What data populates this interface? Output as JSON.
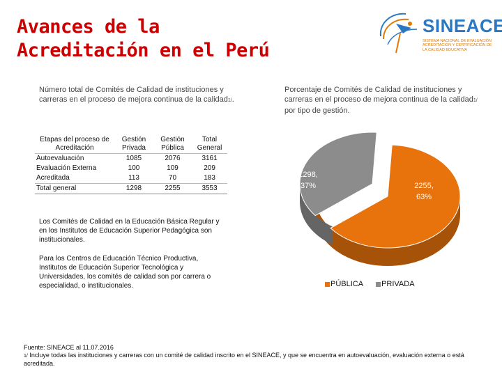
{
  "title": {
    "line1": "Avances de la",
    "line2": "Acreditación en el Perú"
  },
  "logo": {
    "name": "SINEACE",
    "tagline": "SISTEMA NACIONAL DE EVALUACIÓN ACREDITACIÓN Y CERTIFICACIÓN DE LA CALIDAD EDUCATIVA"
  },
  "left_caption": {
    "text": "Número total de Comités de Calidad de instituciones y carreras  en el proceso de mejora continua de la calidad",
    "note": "1/",
    "tail": "."
  },
  "table": {
    "headers": [
      "Etapas del proceso de Acreditación",
      "Gestión Privada",
      "Gestión Pública",
      "Total General"
    ],
    "rows": [
      [
        "Autoevaluación",
        "1085",
        "2076",
        "3161"
      ],
      [
        "Evaluación Externa",
        "100",
        "109",
        "209"
      ],
      [
        "Acreditada",
        "113",
        "70",
        "183"
      ]
    ],
    "total": [
      "Total general",
      "1298",
      "2255",
      "3553"
    ]
  },
  "notes": {
    "p1": "Los Comités de Calidad en la Educación Básica Regular y en los Institutos de Educación Superior Pedagógica son institucionales.",
    "p2": "Para los Centros de Educación Técnico Productiva, Institutos de Educación Superior Tecnológica y Universidades, los comités de calidad son por carrera o especialidad, o institucionales."
  },
  "right_caption": {
    "text": "Porcentaje de Comités de Calidad de instituciones y carreras  en el proceso de mejora continua de la calidad",
    "note": "1/",
    "tail": " por tipo de gestión."
  },
  "chart_data": {
    "type": "pie",
    "title": "Porcentaje de Comités de Calidad de instituciones y carreras en el proceso de mejora continua de la calidad por tipo de gestión.",
    "slices": [
      {
        "name": "PÚBLICA",
        "value": 2255,
        "label": "2255, 63%",
        "color": "#e8720c"
      },
      {
        "name": "PRIVADA",
        "value": 1298,
        "label": "1298, 37%",
        "color": "#8c8c8c"
      }
    ],
    "legend": [
      "PÚBLICA",
      "PRIVADA"
    ],
    "legend_position": "bottom"
  },
  "colors": {
    "title": "#cc0000",
    "publica": "#e8720c",
    "privada": "#8c8c8c",
    "logo_blue": "#2a78c2",
    "logo_orange": "#e07a00"
  },
  "footer": {
    "source": "Fuente: SINEACE al 11.07.2016",
    "note_mark": "1/",
    "note": " Incluye todas las instituciones y carreras con un comité de calidad inscrito en el SINEACE, y que se encuentra en autoevaluación, evaluación externa o está acreditada."
  }
}
